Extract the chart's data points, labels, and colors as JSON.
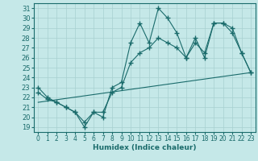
{
  "xlabel": "Humidex (Indice chaleur)",
  "xlim": [
    -0.5,
    23.5
  ],
  "ylim": [
    18.5,
    31.5
  ],
  "yticks": [
    19,
    20,
    21,
    22,
    23,
    24,
    25,
    26,
    27,
    28,
    29,
    30,
    31
  ],
  "xticks": [
    0,
    1,
    2,
    3,
    4,
    5,
    6,
    7,
    8,
    9,
    10,
    11,
    12,
    13,
    14,
    15,
    16,
    17,
    18,
    19,
    20,
    21,
    22,
    23
  ],
  "bg_color": "#c5e8e8",
  "line_color": "#1a6b6b",
  "grid_color": "#a8d0d0",
  "line1_x": [
    0,
    1,
    2,
    3,
    4,
    5,
    6,
    7,
    8,
    9,
    10,
    11,
    12,
    13,
    14,
    15,
    16,
    17,
    18,
    19,
    20,
    21,
    22,
    23
  ],
  "line1_y": [
    23,
    22,
    21.5,
    21,
    20.5,
    19,
    20.5,
    20,
    23,
    23.5,
    27.5,
    29.5,
    27.5,
    31,
    30,
    28.5,
    26,
    28,
    26,
    29.5,
    29.5,
    28.5,
    26.5,
    24.5
  ],
  "line2_x": [
    0,
    1,
    2,
    3,
    4,
    5,
    6,
    7,
    8,
    9,
    10,
    11,
    12,
    13,
    14,
    15,
    16,
    17,
    18,
    19,
    20,
    21,
    22,
    23
  ],
  "line2_y": [
    22.5,
    21.8,
    21.5,
    21,
    20.5,
    19.5,
    20.5,
    20.5,
    22.5,
    23,
    25.5,
    26.5,
    27,
    28,
    27.5,
    27,
    26,
    27.5,
    26.5,
    29.5,
    29.5,
    29,
    26.5,
    24.5
  ],
  "line3_x": [
    0,
    23
  ],
  "line3_y": [
    21.5,
    24.5
  ]
}
